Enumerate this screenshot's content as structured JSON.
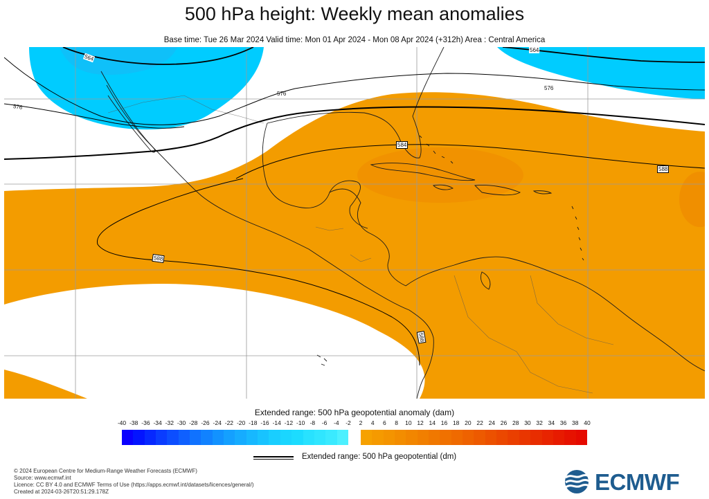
{
  "title": "500 hPa height: Weekly mean anomalies",
  "subtitle": "Base time: Tue 26 Mar 2024 Valid time: Mon 01 Apr 2024 - Mon 08 Apr 2024 (+312h) Area : Central America",
  "map": {
    "contour_labels": [
      "564",
      "564",
      "576",
      "576",
      "576",
      "584",
      "588",
      "588",
      "588"
    ],
    "colors": {
      "positive_anomaly": "#f39c00",
      "stronger_positive_anomaly": "#ee8a00",
      "negative_anomaly": "#00ccff",
      "stronger_negative_anomaly": "#19b8f5",
      "coastline": "#1a1a1a",
      "contour": "#000000"
    }
  },
  "colorbar": {
    "label": "Extended range: 500 hPa geopotential anomaly (dam)",
    "negative_ticks": [
      "-40",
      "-38",
      "-36",
      "-34",
      "-32",
      "-30",
      "-28",
      "-26",
      "-24",
      "-22",
      "-20",
      "-18",
      "-16",
      "-14",
      "-12",
      "-10",
      "-8",
      "-6",
      "-4",
      "-2"
    ],
    "positive_ticks": [
      "2",
      "4",
      "6",
      "8",
      "10",
      "12",
      "14",
      "16",
      "18",
      "20",
      "22",
      "24",
      "26",
      "28",
      "30",
      "32",
      "34",
      "36",
      "38",
      "40"
    ],
    "negative_colors": [
      "#0a00ff",
      "#0314ff",
      "#0628ff",
      "#0a3cff",
      "#0c4eff",
      "#0f60ff",
      "#1072ff",
      "#1182ff",
      "#1292ff",
      "#14a0ff",
      "#16acff",
      "#17b8ff",
      "#18c3ff",
      "#19ceff",
      "#1ad6ff",
      "#1cdcff",
      "#28e2ff",
      "#30e6ff",
      "#3aeaff",
      "#4cf0ff"
    ],
    "positive_colors": [
      "#f6a100",
      "#f59a00",
      "#f49400",
      "#f38d00",
      "#f28600",
      "#f17f00",
      "#f07800",
      "#f07100",
      "#ef6a00",
      "#ee6200",
      "#ed5a00",
      "#ec5100",
      "#eb4800",
      "#ea3f00",
      "#e93600",
      "#e82d00",
      "#e82400",
      "#e71b00",
      "#e61200",
      "#e50a00"
    ]
  },
  "contour_legend": {
    "label": "Extended range: 500 hPa geopotential (dm)"
  },
  "footer": {
    "lines": [
      "© 2024 European Centre for Medium-Range Weather Forecasts (ECMWF)",
      "Source: www.ecmwf.int",
      "Licence: CC BY 4.0 and ECMWF Terms of Use (https://apps.ecmwf.int/datasets/licences/general/)",
      "Created at 2024-03-26T20:51:29.178Z"
    ]
  },
  "logo": {
    "text": "ECMWF",
    "icon": "ecmwf-wave-logo-icon",
    "color": "#1e5c8f"
  }
}
